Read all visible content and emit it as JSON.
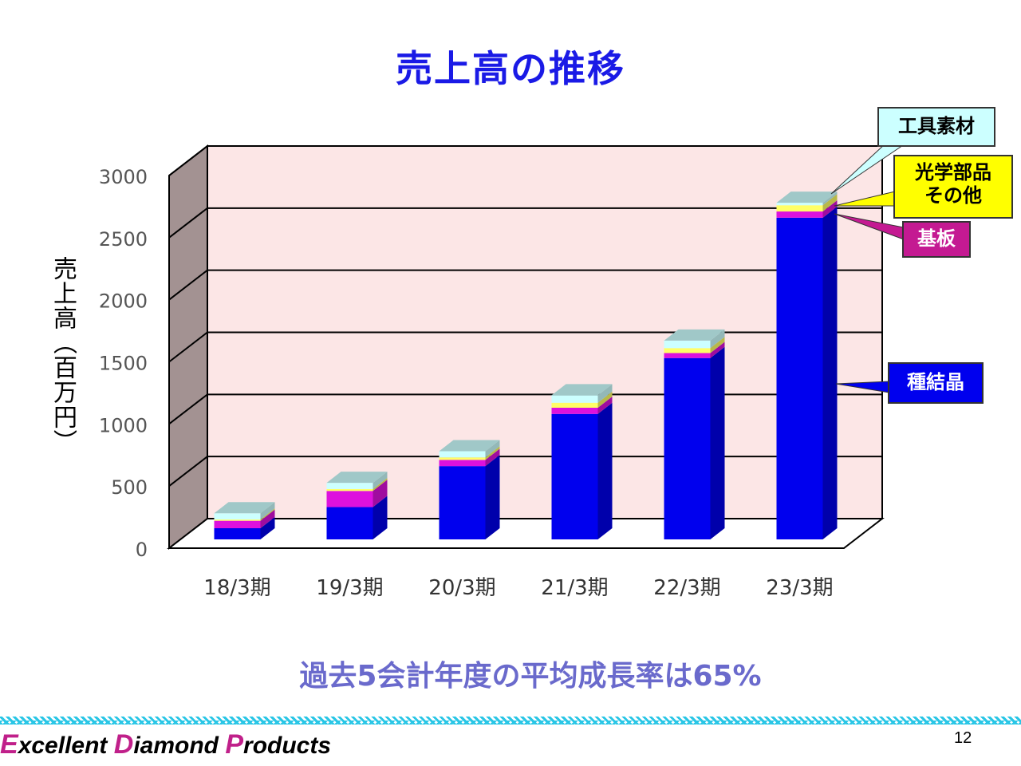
{
  "title": "売上高の推移",
  "subtitle": "過去5会計年度の平均成長率は65%",
  "footer": {
    "e": "E",
    "e_rest": "xcellent ",
    "d": "D",
    "d_rest": "iamond ",
    "p": "P",
    "p_rest": "roducts"
  },
  "page_number": "12",
  "colors": {
    "title": "#1a1ae6",
    "subtitle": "#6a6acc",
    "seed": "#0000ee",
    "substrate": "#dd11dd",
    "optics": "#ffff66",
    "tool": "#ccffff",
    "plot_bg": "#fce6e6",
    "wall": "#a39292"
  },
  "callouts": {
    "tool": "工具素材",
    "optics_line1": "光学部品",
    "optics_line2": "その他",
    "substrate": "基板",
    "seed": "種結晶"
  },
  "chart_data": {
    "type": "bar",
    "stacked": true,
    "three_d": true,
    "categories": [
      "18/3期",
      "19/3期",
      "20/3期",
      "21/3期",
      "22/3期",
      "23/3期"
    ],
    "series": [
      {
        "name": "種結晶",
        "values": [
          90,
          260,
          590,
          1010,
          1460,
          2590
        ]
      },
      {
        "name": "基板",
        "values": [
          60,
          130,
          50,
          50,
          40,
          50
        ]
      },
      {
        "name": "光学部品 その他",
        "values": [
          10,
          15,
          20,
          40,
          40,
          50
        ]
      },
      {
        "name": "工具素材",
        "values": [
          50,
          50,
          50,
          60,
          60,
          20
        ]
      }
    ],
    "ylabel": "売上高（百万円）",
    "xlabel": "",
    "ylim": [
      0,
      3000
    ],
    "yticks": [
      0,
      500,
      1000,
      1500,
      2000,
      2500,
      3000
    ],
    "grid": true,
    "legend": "callouts-right"
  }
}
